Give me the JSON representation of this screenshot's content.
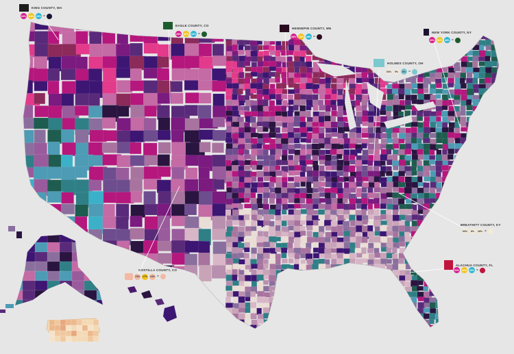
{
  "callouts": [
    {
      "label": "KING COUNTY, WA",
      "shape_color": "#1d1d1d",
      "values": [
        "60%",
        "44%",
        "33%"
      ],
      "dot_colors": [
        "#d81b8c",
        "#f0c419",
        "#2bb6d4"
      ],
      "result_color": "#1b1230"
    },
    {
      "label": "EAGLE COUNTY, CO",
      "shape_color": "#1d5b2f",
      "values": [
        "28%",
        "42%",
        "32%"
      ],
      "dot_colors": [
        "#d81b8c",
        "#f0c419",
        "#2bb6d4"
      ],
      "result_color": "#1d5b2f"
    },
    {
      "label": "HENNEPIN COUNTY, MN",
      "shape_color": "#2a0c20",
      "values": [
        "58%",
        "42%",
        "38%"
      ],
      "dot_colors": [
        "#d81b8c",
        "#f0c419",
        "#2bb6d4"
      ],
      "result_color": "#2a0c20"
    },
    {
      "label": "NEW YORK COUNTY, NY",
      "shape_color": "#1b1230",
      "values": [
        "60%",
        "52%",
        "48%"
      ],
      "dot_colors": [
        "#d81b8c",
        "#f0c419",
        "#2bb6d4"
      ],
      "result_color": "#1d5b2f"
    },
    {
      "label": "HOLMES COUNTY, OH",
      "shape_color": "#7cc8cf",
      "values": [
        "54%",
        "9%",
        "6%"
      ],
      "dot_colors": [
        "#f2e9dc",
        "#f2e9dc",
        "#7cc8cf"
      ],
      "result_color": "#7cc8cf"
    },
    {
      "label": "BREATHITT COUNTY, KY",
      "shape_color": "#f3ead8",
      "values": [
        "60%",
        "8%",
        "28%"
      ],
      "dot_colors": [
        "#f3ead8",
        "#f3ead8",
        "#f3ead8"
      ],
      "result_color": "#f3ead8"
    },
    {
      "label": "ALACHUA COUNTY, FL",
      "shape_color": "#c0143c",
      "values": [
        "54%",
        "30%",
        "20%"
      ],
      "dot_colors": [
        "#d81b8c",
        "#f0c419",
        "#2bb6d4"
      ],
      "result_color": "#c0143c"
    },
    {
      "label": "COSTILLA COUNTY, CO",
      "shape_color": "#f2b9a4",
      "values": [
        "73%",
        "17%",
        "13%"
      ],
      "dot_colors": [
        "#f2b9a4",
        "#f0c419",
        "#f2b9a4"
      ],
      "result_color": "#f2b9a4"
    }
  ],
  "palette": [
    "#b5177d",
    "#7b1a7f",
    "#3d1673",
    "#2a1440",
    "#5a2a7a",
    "#9a5b9c",
    "#c46aa5",
    "#a8749f",
    "#8a6f9e",
    "#c9a3b8",
    "#d8b6c7",
    "#4d9bb5",
    "#2f7f86",
    "#3bb0c9",
    "#1e5c50",
    "#e33a8c",
    "#8c2a5a",
    "#6e4d8f",
    "#e9ddd5",
    "#b98fb0"
  ]
}
